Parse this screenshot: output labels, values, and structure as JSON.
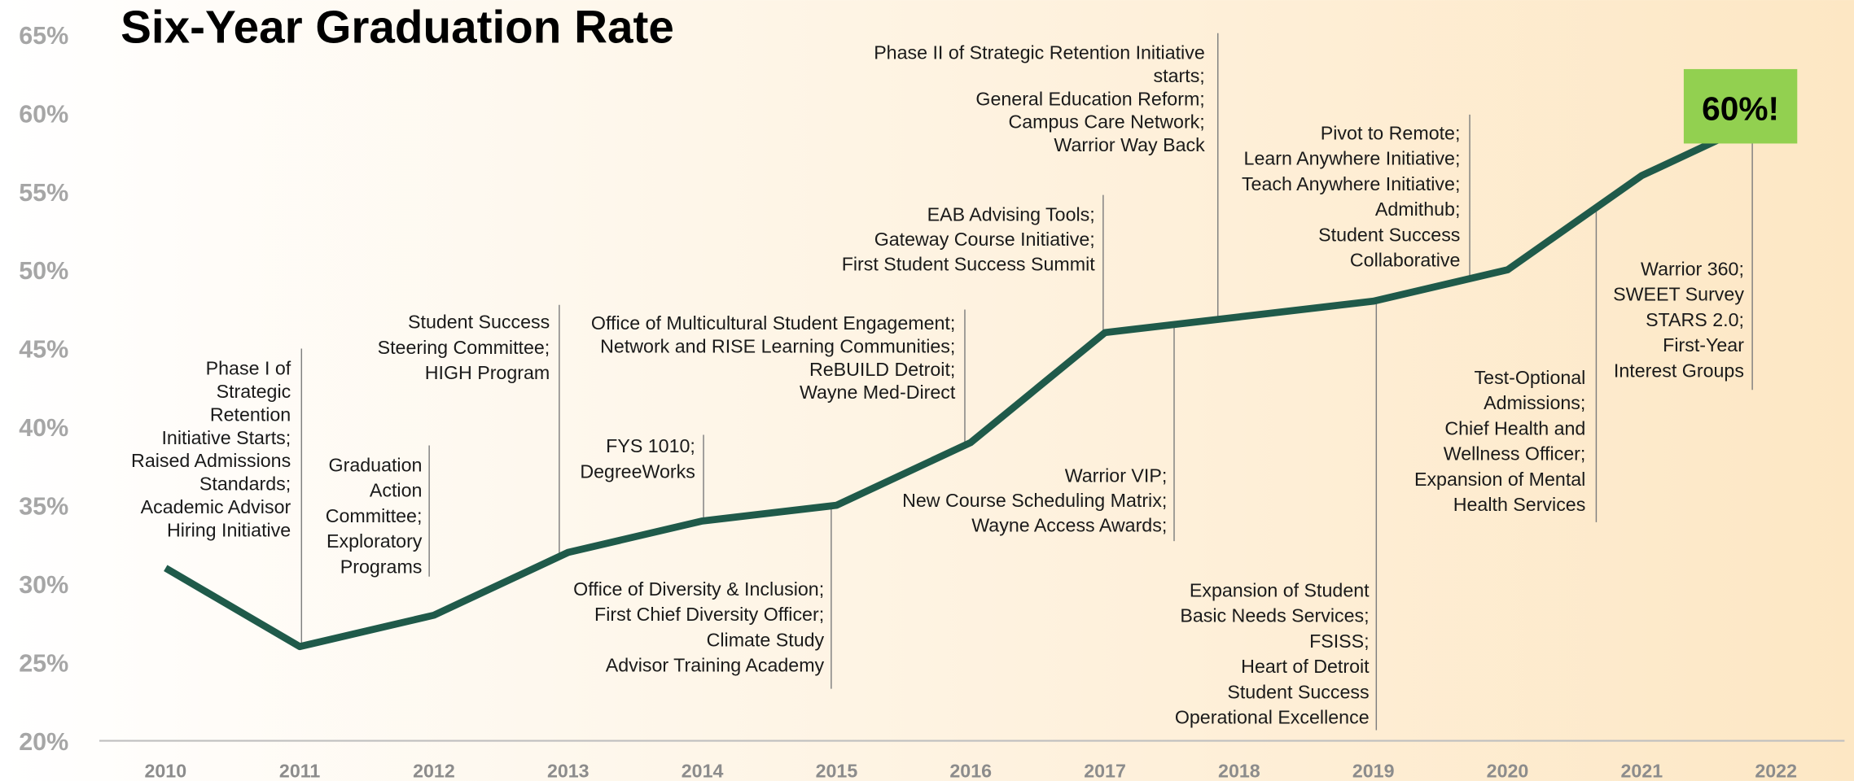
{
  "chart_data": {
    "type": "line",
    "title": "Six-Year Graduation Rate",
    "categories": [
      "2010",
      "2011",
      "2012",
      "2013",
      "2014",
      "2015",
      "2016",
      "2017",
      "2018",
      "2019",
      "2020",
      "2021",
      "2022"
    ],
    "series": [
      {
        "name": "Six-Year Graduation Rate",
        "color": "#1f5a4a",
        "values": [
          31,
          26,
          28,
          32,
          34,
          35,
          39,
          46,
          47,
          48,
          50,
          56,
          60
        ]
      }
    ],
    "value_labels": [
      null,
      null,
      null,
      null,
      null,
      null,
      null,
      null,
      null,
      null,
      null,
      null,
      "60%!"
    ],
    "value_label_color": "#92d050",
    "ylim": [
      20,
      65
    ],
    "yticks": [
      {
        "value": 20,
        "label": "20%"
      },
      {
        "value": 25,
        "label": "25%"
      },
      {
        "value": 30,
        "label": "30%"
      },
      {
        "value": 35,
        "label": "35%"
      },
      {
        "value": 40,
        "label": "40%"
      },
      {
        "value": 45,
        "label": "45%"
      },
      {
        "value": 50,
        "label": "50%"
      },
      {
        "value": 55,
        "label": "55%"
      },
      {
        "value": 60,
        "label": "60%"
      },
      {
        "value": 65,
        "label": "65%"
      }
    ],
    "grid": false,
    "annotations": [
      [
        "Phase I of",
        "Strategic",
        "Retention",
        "Initiative Starts;",
        "Raised Admissions",
        "Standards;",
        "Academic Advisor",
        "Hiring Initiative"
      ],
      [
        "Graduation",
        "Action",
        "Committee;",
        "Exploratory",
        "Programs"
      ],
      [
        "Student Success",
        "Steering Committee;",
        "HIGH Program"
      ],
      [
        "FYS 1010;",
        "DegreeWorks"
      ],
      [
        "Office of Diversity & Inclusion;",
        "First Chief Diversity Officer;",
        "Climate Study",
        "Advisor Training Academy"
      ],
      [
        "Office of Multicultural Student Engagement;",
        "Network and RISE Learning Communities;",
        "ReBUILD Detroit;",
        "Wayne Med-Direct"
      ],
      [
        "EAB Advising Tools;",
        "Gateway Course Initiative;",
        "First Student Success Summit"
      ],
      [
        "Warrior VIP;",
        "New Course Scheduling Matrix;",
        "Wayne Access Awards;"
      ],
      [
        "Phase II of Strategic Retention Initiative",
        "starts;",
        "General Education Reform;",
        "Campus Care Network;",
        "Warrior Way Back"
      ],
      [
        "Expansion of Student",
        "Basic Needs Services;",
        "FSISS;",
        "Heart of Detroit",
        "Student Success",
        "Operational Excellence"
      ],
      [
        "Pivot to Remote;",
        "Learn Anywhere Initiative;",
        "Teach Anywhere Initiative;",
        "Admithub;",
        "Student Success",
        "Collaborative"
      ],
      [
        "Test-Optional",
        "Admissions;",
        "Chief Health and",
        "Wellness Officer;",
        "Expansion of Mental",
        "Health Services"
      ],
      [
        "Warrior 360;",
        "SWEET Survey",
        "STARS 2.0;",
        "First-Year",
        "Interest Groups"
      ]
    ]
  }
}
